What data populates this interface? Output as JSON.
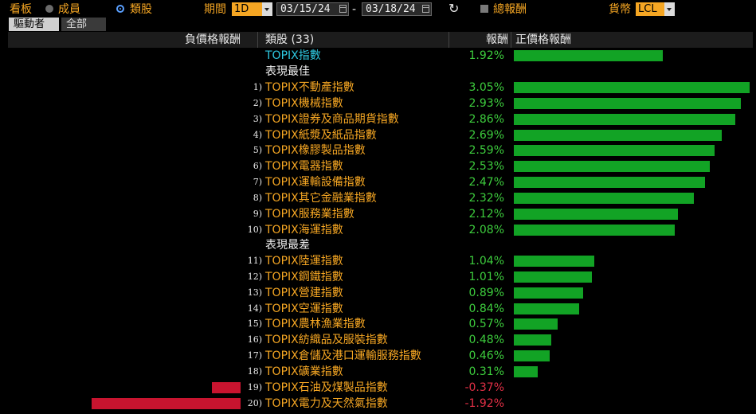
{
  "toolbar": {
    "board_label": "看板",
    "members_label": "成員",
    "category_label": "類股",
    "period_label": "期間",
    "period_value": "1D",
    "start_date": "03/15/24",
    "date_sep": "-",
    "end_date": "03/18/24",
    "total_return_label": "總報酬",
    "currency_label": "貨幣",
    "currency_value": "LCL"
  },
  "tabs": [
    {
      "label": "驅動者"
    },
    {
      "label": "全部"
    }
  ],
  "header": {
    "neg_return": "負價格報酬",
    "sector": "類股 (33)",
    "return": "報酬",
    "pos_return": "正價格報酬"
  },
  "index_row": {
    "name": "TOPIX指數",
    "value": "1.92%",
    "num": 1.92
  },
  "best_label": "表現最佳",
  "worst_label": "表現最差",
  "best": [
    {
      "rank": "1)",
      "name": "TOPIX不動產指數",
      "value": "3.05%",
      "num": 3.05
    },
    {
      "rank": "2)",
      "name": "TOPIX機械指數",
      "value": "2.93%",
      "num": 2.93
    },
    {
      "rank": "3)",
      "name": "TOPIX證券及商品期貨指數",
      "value": "2.86%",
      "num": 2.86
    },
    {
      "rank": "4)",
      "name": "TOPIX紙漿及紙品指數",
      "value": "2.69%",
      "num": 2.69
    },
    {
      "rank": "5)",
      "name": "TOPIX橡膠製品指數",
      "value": "2.59%",
      "num": 2.59
    },
    {
      "rank": "6)",
      "name": "TOPIX電器指數",
      "value": "2.53%",
      "num": 2.53
    },
    {
      "rank": "7)",
      "name": "TOPIX運輸設備指數",
      "value": "2.47%",
      "num": 2.47
    },
    {
      "rank": "8)",
      "name": "TOPIX其它金融業指數",
      "value": "2.32%",
      "num": 2.32
    },
    {
      "rank": "9)",
      "name": "TOPIX服務業指數",
      "value": "2.12%",
      "num": 2.12
    },
    {
      "rank": "10)",
      "name": "TOPIX海運指數",
      "value": "2.08%",
      "num": 2.08
    }
  ],
  "worst": [
    {
      "rank": "11)",
      "name": "TOPIX陸運指數",
      "value": "1.04%",
      "num": 1.04
    },
    {
      "rank": "12)",
      "name": "TOPIX鋼鐵指數",
      "value": "1.01%",
      "num": 1.01
    },
    {
      "rank": "13)",
      "name": "TOPIX營建指數",
      "value": "0.89%",
      "num": 0.89
    },
    {
      "rank": "14)",
      "name": "TOPIX空運指數",
      "value": "0.84%",
      "num": 0.84
    },
    {
      "rank": "15)",
      "name": "TOPIX農林漁業指數",
      "value": "0.57%",
      "num": 0.57
    },
    {
      "rank": "16)",
      "name": "TOPIX紡織品及服裝指數",
      "value": "0.48%",
      "num": 0.48
    },
    {
      "rank": "17)",
      "name": "TOPIX倉儲及港口運輸服務指數",
      "value": "0.46%",
      "num": 0.46
    },
    {
      "rank": "18)",
      "name": "TOPIX礦業指數",
      "value": "0.31%",
      "num": 0.31
    },
    {
      "rank": "19)",
      "name": "TOPIX石油及煤製品指數",
      "value": "-0.37%",
      "num": -0.37
    },
    {
      "rank": "20)",
      "name": "TOPIX電力及天然氣指數",
      "value": "-1.92%",
      "num": -1.92
    }
  ],
  "colors": {
    "positive": "#12a325",
    "negative": "#c8142f",
    "accent": "#f5a623",
    "index": "#2ec8e0"
  }
}
